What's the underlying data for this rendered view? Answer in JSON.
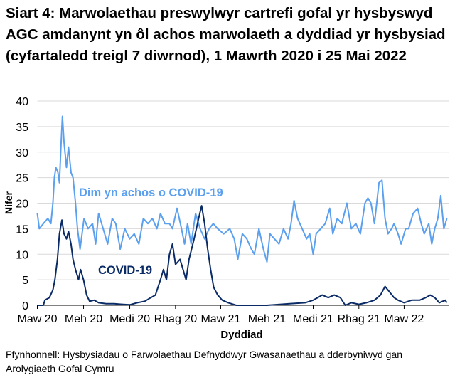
{
  "chart_data": {
    "type": "line",
    "title": "Siart 4: Marwolaethau preswylwyr cartrefi gofal yr hysbyswyd AGC amdanynt yn ôl achos marwolaeth a dyddiad yr hysbysiad (cyfartaledd treigl 7 diwrnod), 1 Mawrth 2020 i 25 Mai 2022",
    "xlabel": "Dyddiad",
    "ylabel": "Nifer",
    "xlim": [
      "2020-03-01",
      "2022-05-25"
    ],
    "ylim": [
      0,
      40
    ],
    "yticks": [
      0,
      5,
      10,
      15,
      20,
      25,
      30,
      35,
      40
    ],
    "xticks": [
      {
        "date": "2020-03-01",
        "label": "Maw 20"
      },
      {
        "date": "2020-06-01",
        "label": "Meh 20"
      },
      {
        "date": "2020-09-01",
        "label": "Medi 20"
      },
      {
        "date": "2020-12-01",
        "label": "Rhag 20"
      },
      {
        "date": "2021-03-01",
        "label": "Maw 21"
      },
      {
        "date": "2021-06-01",
        "label": "Meh 21"
      },
      {
        "date": "2021-09-01",
        "label": "Medi 21"
      },
      {
        "date": "2021-12-01",
        "label": "Rhag 21"
      },
      {
        "date": "2022-03-01",
        "label": "Maw 22"
      }
    ],
    "grid": "horizontal",
    "legend": "inline labels",
    "series": [
      {
        "name": "Dim yn achos o COVID-19",
        "color": "#5ba0ef",
        "points": [
          [
            "2020-03-01",
            18
          ],
          [
            "2020-03-05",
            15
          ],
          [
            "2020-03-13",
            16
          ],
          [
            "2020-03-22",
            17
          ],
          [
            "2020-03-28",
            16
          ],
          [
            "2020-04-01",
            20
          ],
          [
            "2020-04-04",
            25
          ],
          [
            "2020-04-07",
            27
          ],
          [
            "2020-04-11",
            26
          ],
          [
            "2020-04-14",
            24
          ],
          [
            "2020-04-17",
            31
          ],
          [
            "2020-04-20",
            37
          ],
          [
            "2020-04-23",
            32
          ],
          [
            "2020-04-28",
            27
          ],
          [
            "2020-05-02",
            31
          ],
          [
            "2020-05-07",
            26
          ],
          [
            "2020-05-11",
            25
          ],
          [
            "2020-05-16",
            20
          ],
          [
            "2020-05-20",
            15
          ],
          [
            "2020-05-25",
            11
          ],
          [
            "2020-05-29",
            14
          ],
          [
            "2020-06-02",
            17
          ],
          [
            "2020-06-10",
            15
          ],
          [
            "2020-06-19",
            16
          ],
          [
            "2020-06-25",
            12
          ],
          [
            "2020-07-01",
            18
          ],
          [
            "2020-07-10",
            15
          ],
          [
            "2020-07-19",
            12
          ],
          [
            "2020-07-28",
            17
          ],
          [
            "2020-08-04",
            16
          ],
          [
            "2020-08-13",
            11
          ],
          [
            "2020-08-22",
            15
          ],
          [
            "2020-09-01",
            13
          ],
          [
            "2020-09-10",
            14
          ],
          [
            "2020-09-19",
            12
          ],
          [
            "2020-09-28",
            17
          ],
          [
            "2020-10-07",
            16
          ],
          [
            "2020-10-16",
            17
          ],
          [
            "2020-10-25",
            15
          ],
          [
            "2020-11-01",
            18
          ],
          [
            "2020-11-10",
            16
          ],
          [
            "2020-11-19",
            16
          ],
          [
            "2020-11-25",
            15
          ],
          [
            "2020-12-04",
            19
          ],
          [
            "2020-12-13",
            15
          ],
          [
            "2020-12-19",
            12
          ],
          [
            "2020-12-25",
            16
          ],
          [
            "2021-01-01",
            12
          ],
          [
            "2021-01-10",
            18
          ],
          [
            "2021-01-19",
            15
          ],
          [
            "2021-01-28",
            13
          ],
          [
            "2021-02-06",
            15
          ],
          [
            "2021-02-14",
            16
          ],
          [
            "2021-02-23",
            15
          ],
          [
            "2021-03-07",
            14
          ],
          [
            "2021-03-19",
            15
          ],
          [
            "2021-03-28",
            13
          ],
          [
            "2021-04-04",
            9
          ],
          [
            "2021-04-13",
            14
          ],
          [
            "2021-04-22",
            13
          ],
          [
            "2021-05-01",
            11
          ],
          [
            "2021-05-07",
            10
          ],
          [
            "2021-05-16",
            15
          ],
          [
            "2021-05-25",
            11
          ],
          [
            "2021-06-01",
            8.5
          ],
          [
            "2021-06-07",
            14
          ],
          [
            "2021-06-16",
            13
          ],
          [
            "2021-06-25",
            12
          ],
          [
            "2021-07-04",
            15
          ],
          [
            "2021-07-13",
            13
          ],
          [
            "2021-07-19",
            16
          ],
          [
            "2021-07-25",
            20.5
          ],
          [
            "2021-08-01",
            17
          ],
          [
            "2021-08-10",
            15
          ],
          [
            "2021-08-19",
            13
          ],
          [
            "2021-08-25",
            14
          ],
          [
            "2021-09-01",
            10
          ],
          [
            "2021-09-07",
            14
          ],
          [
            "2021-09-16",
            15
          ],
          [
            "2021-09-25",
            16
          ],
          [
            "2021-10-04",
            19
          ],
          [
            "2021-10-10",
            14
          ],
          [
            "2021-10-19",
            17
          ],
          [
            "2021-10-28",
            16
          ],
          [
            "2021-11-07",
            20
          ],
          [
            "2021-11-16",
            15
          ],
          [
            "2021-11-25",
            16
          ],
          [
            "2021-12-04",
            14
          ],
          [
            "2021-12-13",
            20
          ],
          [
            "2021-12-19",
            21
          ],
          [
            "2021-12-25",
            20
          ],
          [
            "2022-01-01",
            16
          ],
          [
            "2022-01-10",
            24
          ],
          [
            "2022-01-16",
            24.5
          ],
          [
            "2022-01-22",
            17
          ],
          [
            "2022-01-28",
            14
          ],
          [
            "2022-02-04",
            15
          ],
          [
            "2022-02-09",
            16
          ],
          [
            "2022-02-17",
            14
          ],
          [
            "2022-02-23",
            12
          ],
          [
            "2022-03-04",
            15
          ],
          [
            "2022-03-10",
            15
          ],
          [
            "2022-03-19",
            18
          ],
          [
            "2022-03-28",
            19
          ],
          [
            "2022-04-04",
            16
          ],
          [
            "2022-04-10",
            14
          ],
          [
            "2022-04-19",
            16
          ],
          [
            "2022-04-25",
            12
          ],
          [
            "2022-05-01",
            15
          ],
          [
            "2022-05-07",
            17
          ],
          [
            "2022-05-13",
            21.5
          ],
          [
            "2022-05-19",
            15
          ],
          [
            "2022-05-25",
            17
          ]
        ]
      },
      {
        "name": "COVID-19",
        "color": "#0b2b66",
        "points": [
          [
            "2020-03-01",
            0
          ],
          [
            "2020-03-13",
            0
          ],
          [
            "2020-03-16",
            1
          ],
          [
            "2020-03-25",
            1.5
          ],
          [
            "2020-04-01",
            3
          ],
          [
            "2020-04-05",
            5
          ],
          [
            "2020-04-10",
            9
          ],
          [
            "2020-04-14",
            14
          ],
          [
            "2020-04-19",
            16.7
          ],
          [
            "2020-04-23",
            14
          ],
          [
            "2020-04-28",
            13
          ],
          [
            "2020-05-02",
            14.5
          ],
          [
            "2020-05-07",
            12
          ],
          [
            "2020-05-11",
            9
          ],
          [
            "2020-05-16",
            7
          ],
          [
            "2020-05-22",
            5
          ],
          [
            "2020-05-26",
            7
          ],
          [
            "2020-06-01",
            5
          ],
          [
            "2020-06-07",
            2
          ],
          [
            "2020-06-13",
            0.8
          ],
          [
            "2020-06-22",
            1
          ],
          [
            "2020-07-01",
            0.5
          ],
          [
            "2020-07-16",
            0.3
          ],
          [
            "2020-08-01",
            0.3
          ],
          [
            "2020-08-16",
            0.2
          ],
          [
            "2020-09-01",
            0.1
          ],
          [
            "2020-09-16",
            0.5
          ],
          [
            "2020-10-01",
            0.8
          ],
          [
            "2020-10-13",
            1.5
          ],
          [
            "2020-10-22",
            2
          ],
          [
            "2020-11-01",
            5
          ],
          [
            "2020-11-07",
            7
          ],
          [
            "2020-11-13",
            5
          ],
          [
            "2020-11-19",
            10
          ],
          [
            "2020-11-25",
            12
          ],
          [
            "2020-12-01",
            8
          ],
          [
            "2020-12-10",
            9
          ],
          [
            "2020-12-16",
            7
          ],
          [
            "2020-12-22",
            5
          ],
          [
            "2020-12-28",
            9
          ],
          [
            "2021-01-07",
            13
          ],
          [
            "2021-01-16",
            17
          ],
          [
            "2021-01-22",
            19.5
          ],
          [
            "2021-01-28",
            16
          ],
          [
            "2021-02-03",
            11
          ],
          [
            "2021-02-09",
            7
          ],
          [
            "2021-02-15",
            3.5
          ],
          [
            "2021-02-23",
            2
          ],
          [
            "2021-03-04",
            1
          ],
          [
            "2021-03-16",
            0.5
          ],
          [
            "2021-04-01",
            0
          ],
          [
            "2021-06-01",
            0
          ],
          [
            "2021-07-16",
            0.3
          ],
          [
            "2021-08-16",
            0.5
          ],
          [
            "2021-09-01",
            1
          ],
          [
            "2021-09-10",
            1.5
          ],
          [
            "2021-09-19",
            2
          ],
          [
            "2021-10-01",
            1.5
          ],
          [
            "2021-10-13",
            2
          ],
          [
            "2021-10-25",
            1.5
          ],
          [
            "2021-11-04",
            0
          ],
          [
            "2021-11-16",
            0.5
          ],
          [
            "2021-12-01",
            0.2
          ],
          [
            "2021-12-16",
            0.5
          ],
          [
            "2022-01-01",
            1
          ],
          [
            "2022-01-13",
            2
          ],
          [
            "2022-01-22",
            3.7
          ],
          [
            "2022-02-01",
            2.5
          ],
          [
            "2022-02-09",
            1.5
          ],
          [
            "2022-02-17",
            1
          ],
          [
            "2022-03-01",
            0.5
          ],
          [
            "2022-03-16",
            1
          ],
          [
            "2022-04-01",
            1
          ],
          [
            "2022-04-13",
            1.5
          ],
          [
            "2022-04-22",
            2
          ],
          [
            "2022-05-01",
            1.5
          ],
          [
            "2022-05-10",
            0.5
          ],
          [
            "2022-05-22",
            1
          ],
          [
            "2022-05-25",
            0.5
          ]
        ]
      }
    ]
  },
  "source": "Ffynhonnell: Hysbysiadau o Farwolaethau Defnyddwyr Gwasanaethau a dderbyniwyd gan Arolygiaeth Gofal Cymru"
}
